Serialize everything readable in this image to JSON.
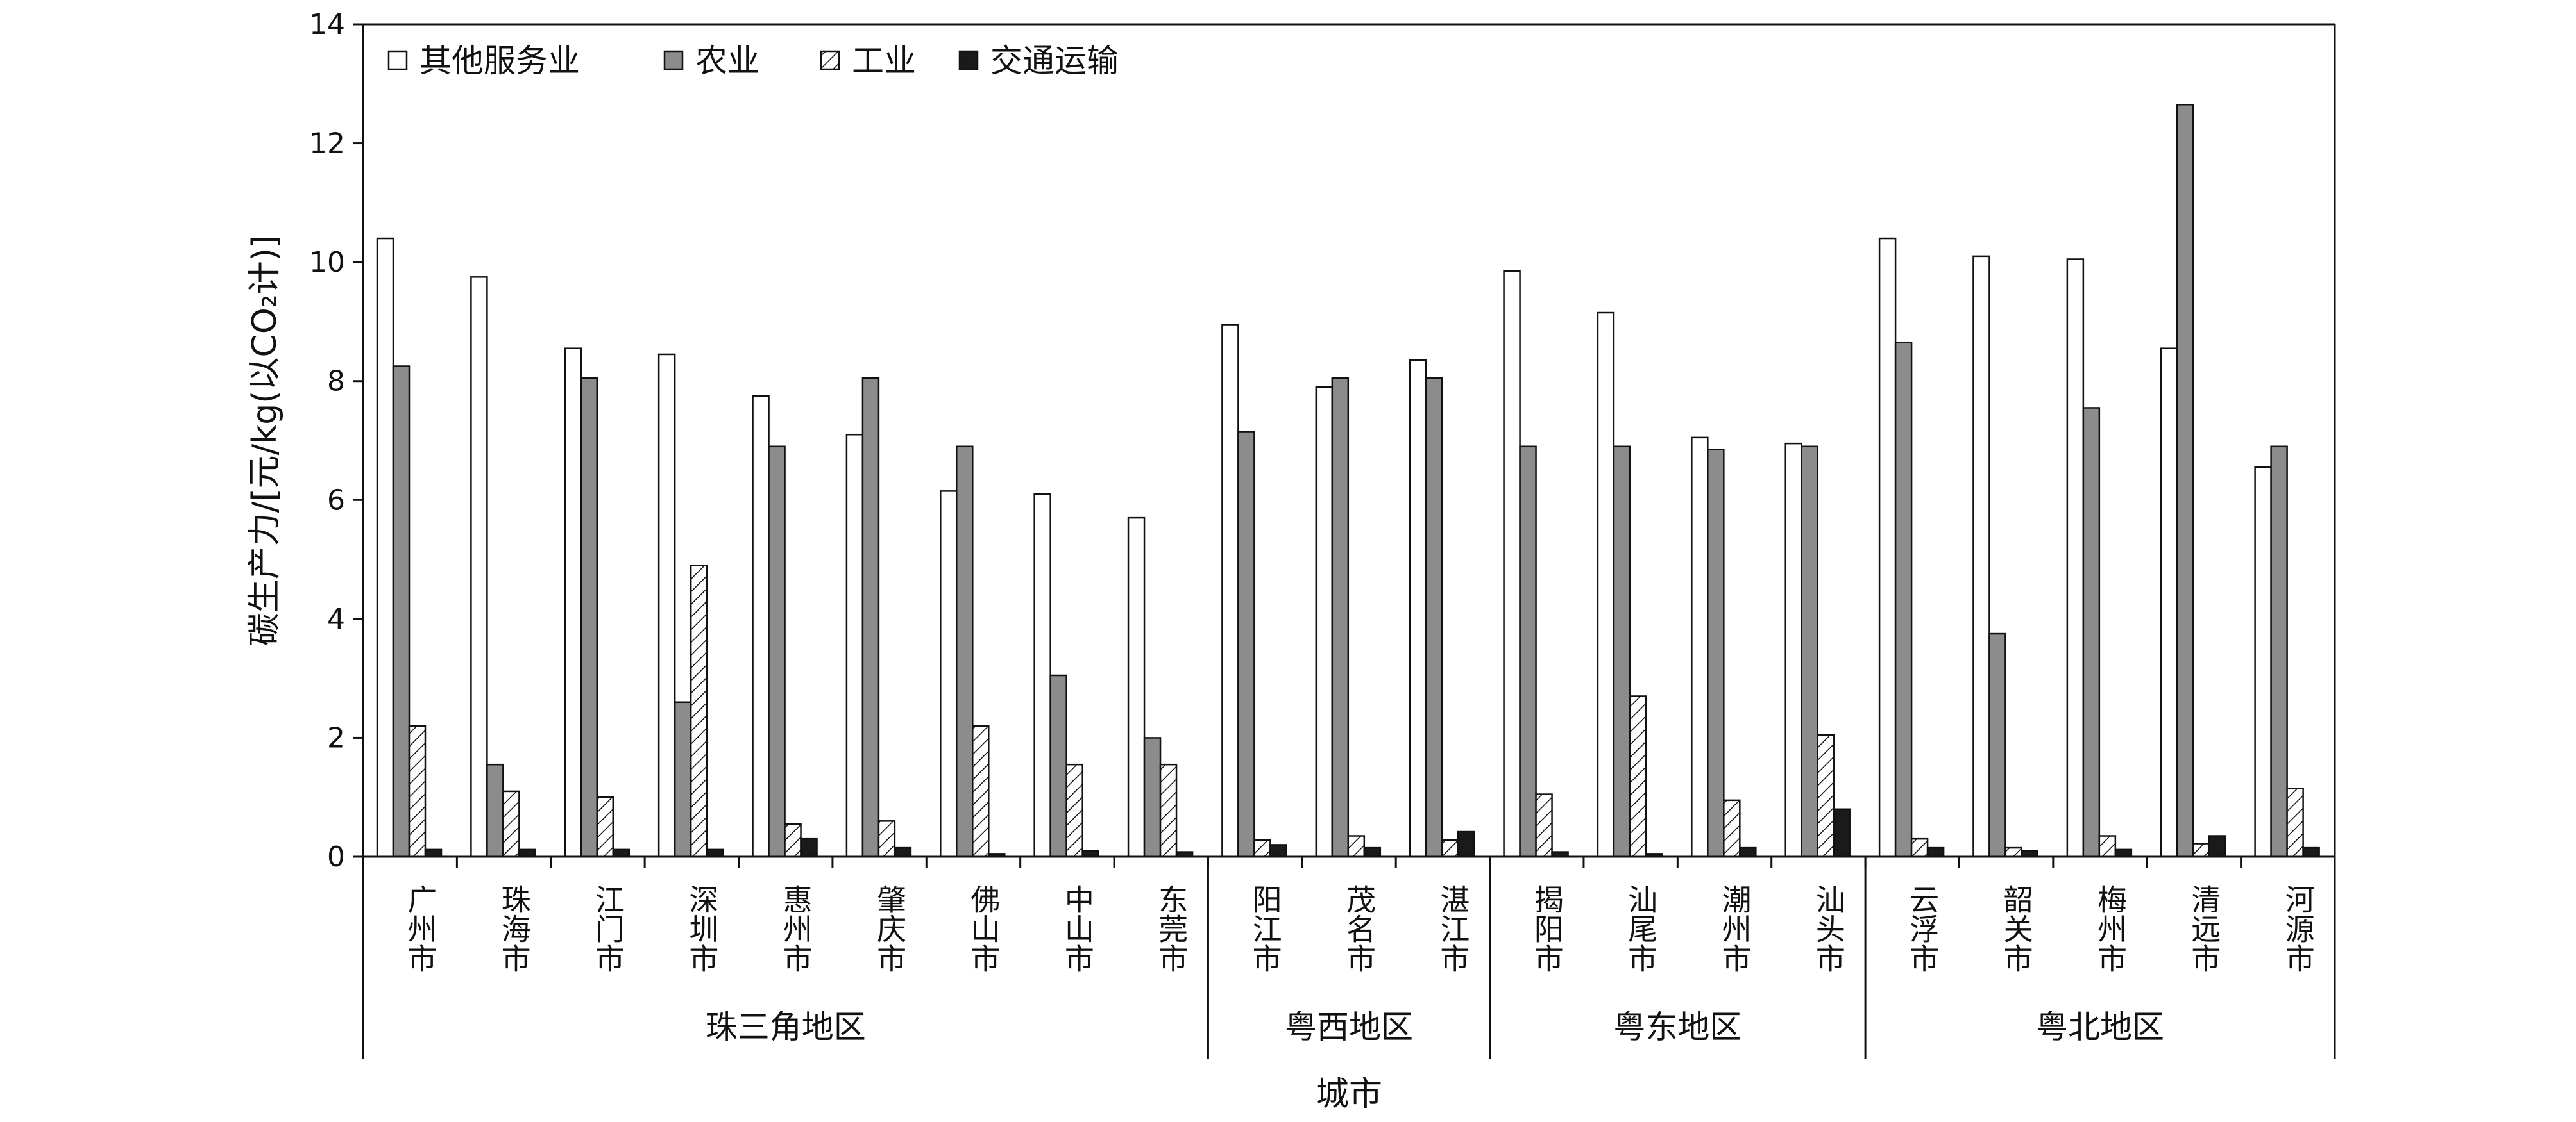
{
  "chart_data": {
    "type": "bar",
    "ylabel": "碳生产力/[元/kg(以CO₂计)]",
    "xlabel": "城市",
    "ylim": [
      0,
      14
    ],
    "yticks": [
      0,
      2,
      4,
      6,
      8,
      10,
      12,
      14
    ],
    "grid": false,
    "legend_placement": "top-left",
    "categories": [
      "广州市",
      "珠海市",
      "江门市",
      "深圳市",
      "惠州市",
      "肇庆市",
      "佛山市",
      "中山市",
      "东莞市",
      "阳江市",
      "茂名市",
      "湛江市",
      "揭阳市",
      "汕尾市",
      "潮州市",
      "汕头市",
      "云浮市",
      "韶关市",
      "梅州市",
      "清远市",
      "河源市"
    ],
    "regions": [
      {
        "name": "珠三角地区",
        "count": 9
      },
      {
        "name": "粤西地区",
        "count": 3
      },
      {
        "name": "粤东地区",
        "count": 4
      },
      {
        "name": "粤北地区",
        "count": 5
      }
    ],
    "series": [
      {
        "name": "其他服务业",
        "style": "white",
        "values": [
          10.4,
          9.75,
          8.55,
          8.45,
          7.75,
          7.1,
          6.15,
          6.1,
          5.7,
          8.95,
          7.9,
          8.35,
          9.85,
          9.15,
          7.05,
          6.95,
          10.4,
          10.1,
          10.05,
          8.55,
          6.55
        ]
      },
      {
        "name": "农业",
        "style": "gray",
        "values": [
          8.25,
          1.55,
          8.05,
          2.6,
          6.9,
          8.05,
          6.9,
          3.05,
          2.0,
          7.15,
          8.05,
          8.05,
          6.9,
          6.9,
          6.85,
          6.9,
          8.65,
          3.75,
          7.55,
          12.65,
          6.9
        ]
      },
      {
        "name": "工业",
        "style": "hatched",
        "values": [
          2.2,
          1.1,
          1.0,
          4.9,
          0.55,
          0.6,
          2.2,
          1.55,
          1.55,
          0.28,
          0.35,
          0.28,
          1.05,
          2.7,
          0.95,
          2.05,
          0.3,
          0.15,
          0.35,
          0.22,
          1.15
        ]
      },
      {
        "name": "交通运输",
        "style": "black",
        "values": [
          0.12,
          0.12,
          0.12,
          0.12,
          0.3,
          0.15,
          0.05,
          0.1,
          0.08,
          0.2,
          0.15,
          0.42,
          0.08,
          0.05,
          0.15,
          0.8,
          0.15,
          0.1,
          0.12,
          0.35,
          0.15
        ]
      }
    ],
    "colors": {
      "gray": "#8c8c8c",
      "black": "#1a1a1a",
      "white": "#ffffff",
      "axis": "#111111"
    }
  }
}
